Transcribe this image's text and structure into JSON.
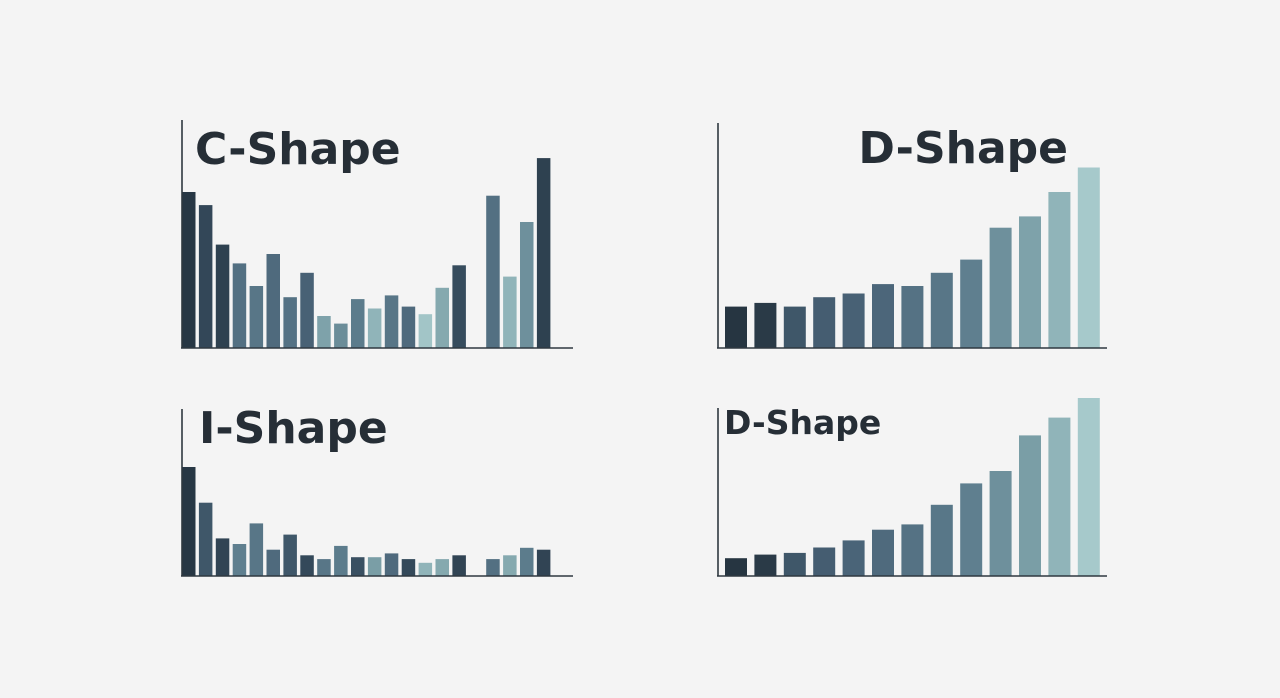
{
  "colors": {
    "background": "#f4f4f4",
    "axis": "#2f3840",
    "title": "#262e36",
    "gradient": [
      "#263541",
      "#34495a",
      "#4a6478",
      "#5c7c8c",
      "#7a9ea6",
      "#a6c9cb"
    ]
  },
  "chart_data": [
    {
      "id": "c-shape",
      "type": "bar",
      "title": "C-Shape",
      "xlabel": "",
      "ylabel": "",
      "ylim": [
        0,
        100
      ],
      "values": [
        83,
        76,
        55,
        45,
        33,
        50,
        27,
        40,
        17,
        13,
        26,
        21,
        28,
        22,
        18,
        32,
        44,
        null,
        81,
        38,
        67,
        101
      ],
      "shades": [
        0.02,
        0.18,
        0.12,
        0.5,
        0.55,
        0.45,
        0.52,
        0.38,
        0.82,
        0.7,
        0.6,
        0.9,
        0.55,
        0.45,
        0.98,
        0.85,
        0.22,
        null,
        0.5,
        0.9,
        0.72,
        0.12
      ],
      "grid": false
    },
    {
      "id": "d-shape-top",
      "type": "bar",
      "title": "D-Shape",
      "xlabel": "",
      "ylabel": "",
      "ylim": [
        0,
        100
      ],
      "values": [
        22,
        24,
        22,
        27,
        29,
        34,
        33,
        40,
        47,
        64,
        70,
        83,
        96
      ],
      "shades": [
        0.0,
        0.05,
        0.3,
        0.35,
        0.38,
        0.42,
        0.52,
        0.55,
        0.62,
        0.72,
        0.82,
        0.9,
        1.0
      ],
      "grid": false
    },
    {
      "id": "i-shape",
      "type": "bar",
      "title": "I-Shape",
      "xlabel": "",
      "ylabel": "",
      "ylim": [
        0,
        100
      ],
      "values": [
        58,
        39,
        20,
        17,
        28,
        14,
        22,
        11,
        9,
        16,
        10,
        10,
        12,
        9,
        7,
        9,
        11,
        null,
        9,
        11,
        15,
        14
      ],
      "shades": [
        0.02,
        0.3,
        0.15,
        0.62,
        0.55,
        0.45,
        0.3,
        0.2,
        0.55,
        0.6,
        0.25,
        0.8,
        0.45,
        0.2,
        0.9,
        0.85,
        0.15,
        null,
        0.5,
        0.85,
        0.6,
        0.15
      ],
      "grid": false
    },
    {
      "id": "d-shape-bottom",
      "type": "bar",
      "title": "D-Shape",
      "xlabel": "",
      "ylabel": "",
      "ylim": [
        0,
        100
      ],
      "values": [
        10,
        12,
        13,
        16,
        20,
        26,
        29,
        40,
        52,
        59,
        79,
        89,
        100
      ],
      "shades": [
        0.0,
        0.05,
        0.3,
        0.35,
        0.4,
        0.45,
        0.52,
        0.56,
        0.62,
        0.72,
        0.8,
        0.9,
        1.0
      ],
      "grid": false
    }
  ]
}
